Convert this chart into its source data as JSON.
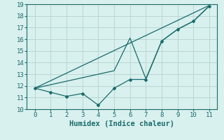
{
  "xlabel": "Humidex (Indice chaleur)",
  "background_color": "#d8f0ee",
  "grid_color": "#b8d8d4",
  "line_color": "#1a6b6b",
  "xlim": [
    -0.5,
    11.5
  ],
  "ylim": [
    10,
    19
  ],
  "xticks": [
    0,
    1,
    2,
    3,
    4,
    5,
    6,
    7,
    8,
    9,
    10,
    11
  ],
  "yticks": [
    10,
    11,
    12,
    13,
    14,
    15,
    16,
    17,
    18,
    19
  ],
  "line1_x": [
    0,
    1,
    2,
    3,
    4,
    5,
    6,
    7,
    8,
    9,
    10,
    11
  ],
  "line1_y": [
    11.8,
    11.45,
    11.1,
    11.35,
    10.35,
    11.8,
    12.55,
    12.55,
    15.85,
    16.85,
    17.55,
    18.85
  ],
  "line2_x": [
    0,
    11
  ],
  "line2_y": [
    11.8,
    18.9
  ],
  "line3_x": [
    0,
    5,
    6,
    7,
    8,
    9,
    10,
    11
  ],
  "line3_y": [
    11.8,
    13.3,
    16.1,
    12.6,
    15.85,
    16.85,
    17.55,
    18.85
  ],
  "xlabel_fontsize": 7.5,
  "tick_fontsize": 6.5
}
